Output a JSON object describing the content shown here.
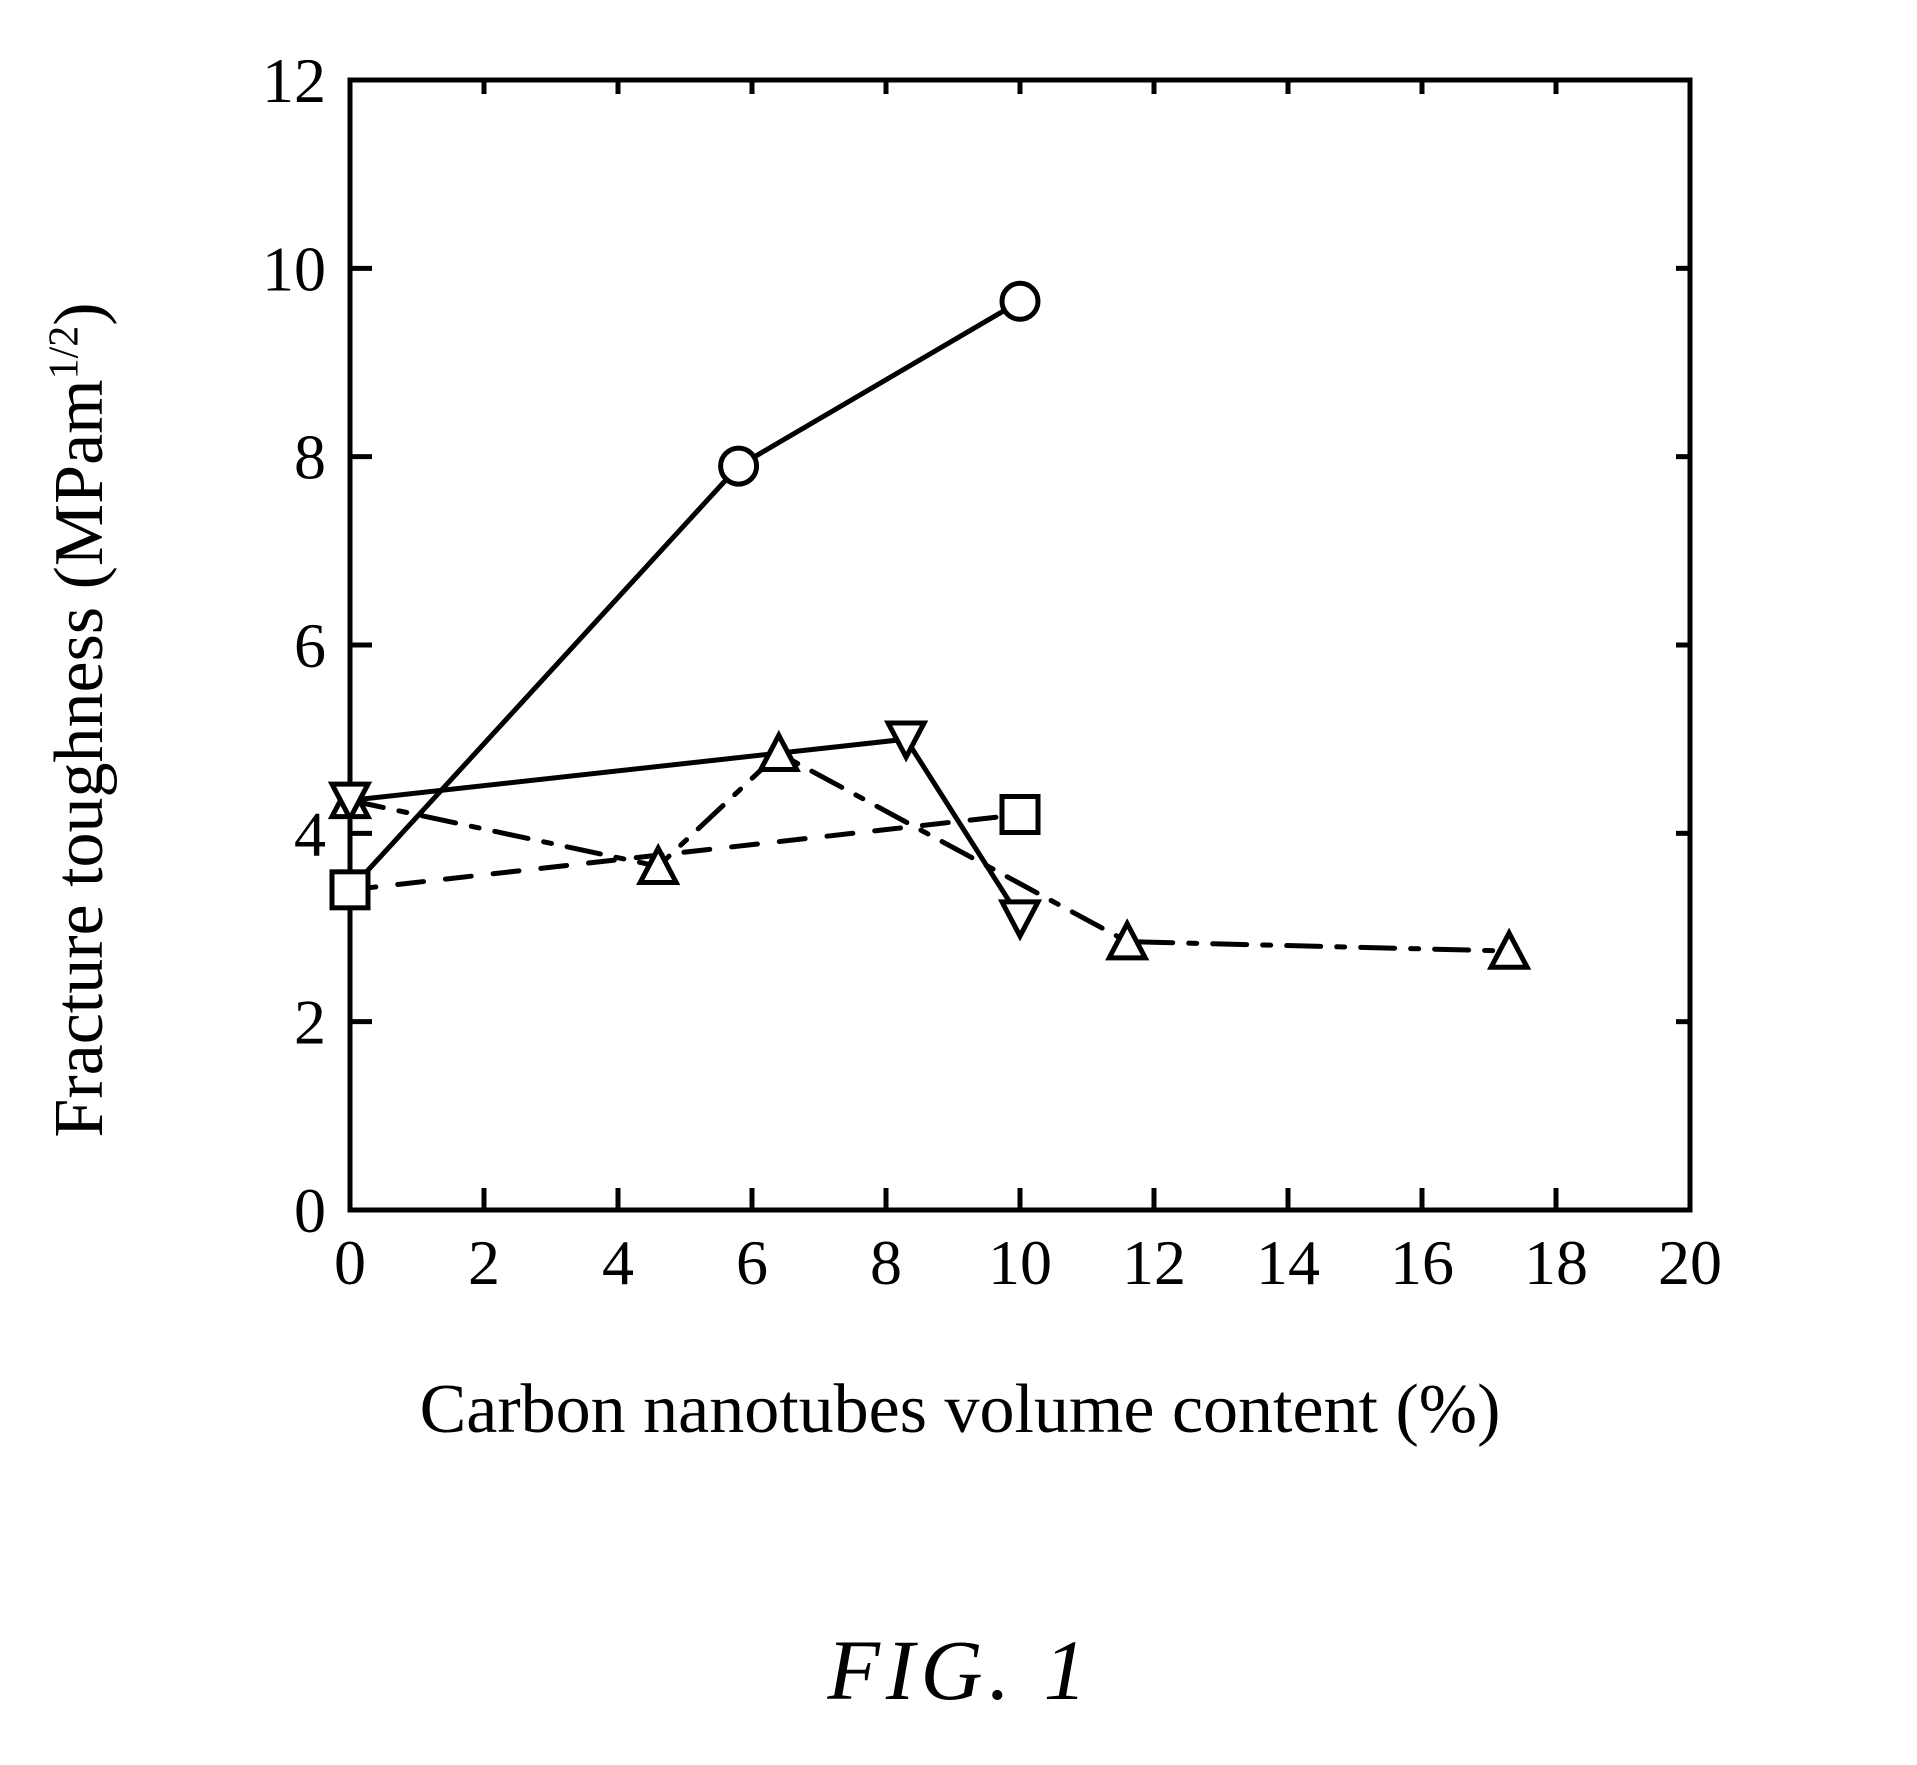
{
  "figure": {
    "caption": "FIG. 1",
    "chart": {
      "type": "line",
      "xlabel": "Carbon nanotubes volume content (%)",
      "ylabel_html": "Fracture toughness (MPam<sup>1/2</sup>)",
      "ylabel": "Fracture toughness (MPam^1/2)",
      "background_color": "#ffffff",
      "axis_color": "#000000",
      "axis_stroke_width": 5,
      "tick_len_major": 22,
      "tick_len_minor": 14,
      "xlim": [
        0,
        20
      ],
      "ylim": [
        0,
        12
      ],
      "xtick_step": 2,
      "ytick_step": 2,
      "label_fontsize": 70,
      "tick_fontsize": 64,
      "marker_size": 36,
      "marker_stroke_width": 5,
      "line_stroke_width": 5,
      "series": [
        {
          "name": "circle-series",
          "marker": "circle",
          "dash": "solid",
          "color": "#000000",
          "data": [
            {
              "x": 0.0,
              "y": 3.4
            },
            {
              "x": 5.8,
              "y": 7.9
            },
            {
              "x": 10.0,
              "y": 9.65
            }
          ]
        },
        {
          "name": "square-series",
          "marker": "square",
          "dash": "dashed",
          "color": "#000000",
          "data": [
            {
              "x": 0.0,
              "y": 3.4
            },
            {
              "x": 10.0,
              "y": 4.2
            }
          ]
        },
        {
          "name": "triangle-up-series",
          "marker": "triangle-up",
          "dash": "dashdot",
          "color": "#000000",
          "data": [
            {
              "x": 0.0,
              "y": 4.35
            },
            {
              "x": 4.6,
              "y": 3.65
            },
            {
              "x": 6.4,
              "y": 4.85
            },
            {
              "x": 11.6,
              "y": 2.85
            },
            {
              "x": 17.3,
              "y": 2.75
            }
          ]
        },
        {
          "name": "triangle-down-series",
          "marker": "triangle-down",
          "dash": "solid",
          "color": "#000000",
          "data": [
            {
              "x": 0.0,
              "y": 4.35
            },
            {
              "x": 8.3,
              "y": 5.0
            },
            {
              "x": 10.0,
              "y": 3.1
            }
          ]
        }
      ]
    }
  }
}
